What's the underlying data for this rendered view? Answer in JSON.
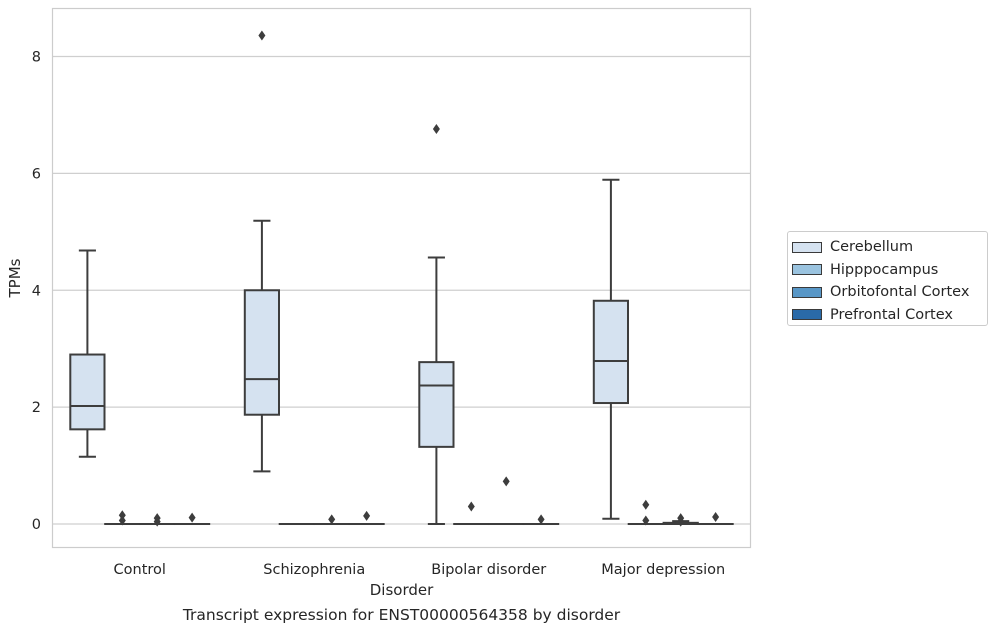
{
  "chart_data": {
    "type": "box",
    "title": "Transcript expression for ENST00000564358 by disorder",
    "xlabel": "Disorder",
    "ylabel": "TPMs",
    "ylim": [
      -0.4,
      8.8
    ],
    "yticks": [
      0,
      2,
      4,
      6,
      8
    ],
    "grid": true,
    "legend_position": "right",
    "categories": [
      "Control",
      "Schizophrenia",
      "Bipolar disorder",
      "Major depression"
    ],
    "series": [
      {
        "name": "Cerebellum",
        "color": "#d5e2f0",
        "boxes": [
          {
            "category": "Control",
            "whisker_low": 1.15,
            "q1": 1.62,
            "median": 2.02,
            "q3": 2.9,
            "whisker_high": 4.68,
            "outliers": []
          },
          {
            "category": "Schizophrenia",
            "whisker_low": 0.9,
            "q1": 1.87,
            "median": 2.48,
            "q3": 4.0,
            "whisker_high": 5.19,
            "outliers": [
              8.36
            ]
          },
          {
            "category": "Bipolar disorder",
            "whisker_low": 0.0,
            "q1": 1.32,
            "median": 2.37,
            "q3": 2.77,
            "whisker_high": 4.56,
            "outliers": [
              6.76
            ]
          },
          {
            "category": "Major depression",
            "whisker_low": 0.09,
            "q1": 2.07,
            "median": 2.79,
            "q3": 3.82,
            "whisker_high": 5.89,
            "outliers": []
          }
        ]
      },
      {
        "name": "Hipppocampus",
        "color": "#9ac3df",
        "boxes": [
          {
            "category": "Control",
            "whisker_low": 0.0,
            "q1": 0.0,
            "median": 0.0,
            "q3": 0.0,
            "whisker_high": 0.0,
            "outliers": [
              0.15,
              0.06
            ]
          },
          {
            "category": "Schizophrenia",
            "whisker_low": 0.0,
            "q1": 0.0,
            "median": 0.0,
            "q3": 0.0,
            "whisker_high": 0.0,
            "outliers": []
          },
          {
            "category": "Bipolar disorder",
            "whisker_low": 0.0,
            "q1": 0.0,
            "median": 0.0,
            "q3": 0.0,
            "whisker_high": 0.0,
            "outliers": [
              0.3
            ]
          },
          {
            "category": "Major depression",
            "whisker_low": 0.0,
            "q1": 0.0,
            "median": 0.0,
            "q3": 0.0,
            "whisker_high": 0.0,
            "outliers": [
              0.33,
              0.06
            ]
          }
        ]
      },
      {
        "name": "Orbitofontal Cortex",
        "color": "#5897c7",
        "boxes": [
          {
            "category": "Control",
            "whisker_low": 0.0,
            "q1": 0.0,
            "median": 0.0,
            "q3": 0.0,
            "whisker_high": 0.0,
            "outliers": [
              0.1,
              0.04
            ]
          },
          {
            "category": "Schizophrenia",
            "whisker_low": 0.0,
            "q1": 0.0,
            "median": 0.0,
            "q3": 0.0,
            "whisker_high": 0.0,
            "outliers": [
              0.08
            ]
          },
          {
            "category": "Bipolar disorder",
            "whisker_low": 0.0,
            "q1": 0.0,
            "median": 0.0,
            "q3": 0.0,
            "whisker_high": 0.0,
            "outliers": [
              0.73
            ]
          },
          {
            "category": "Major depression",
            "whisker_low": 0.0,
            "q1": 0.0,
            "median": 0.0,
            "q3": 0.02,
            "whisker_high": 0.05,
            "outliers": [
              0.1,
              0.04
            ]
          }
        ]
      },
      {
        "name": "Prefrontal Cortex",
        "color": "#2a6aa8",
        "boxes": [
          {
            "category": "Control",
            "whisker_low": 0.0,
            "q1": 0.0,
            "median": 0.0,
            "q3": 0.0,
            "whisker_high": 0.0,
            "outliers": [
              0.11
            ]
          },
          {
            "category": "Schizophrenia",
            "whisker_low": 0.0,
            "q1": 0.0,
            "median": 0.0,
            "q3": 0.0,
            "whisker_high": 0.0,
            "outliers": [
              0.14
            ]
          },
          {
            "category": "Bipolar disorder",
            "whisker_low": 0.0,
            "q1": 0.0,
            "median": 0.0,
            "q3": 0.0,
            "whisker_high": 0.0,
            "outliers": [
              0.08
            ]
          },
          {
            "category": "Major depression",
            "whisker_low": 0.0,
            "q1": 0.0,
            "median": 0.0,
            "q3": 0.0,
            "whisker_high": 0.0,
            "outliers": [
              0.12
            ]
          }
        ]
      }
    ]
  }
}
